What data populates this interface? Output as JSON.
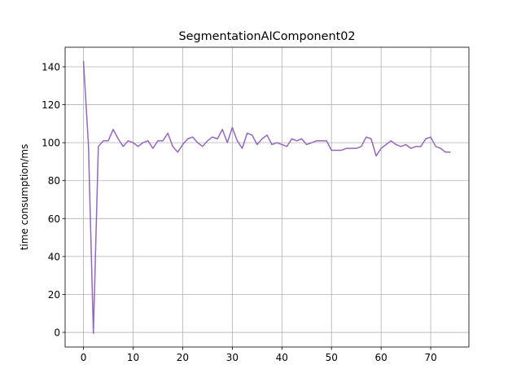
{
  "chart_data": {
    "type": "line",
    "title": "SegmentationAIComponent02",
    "ylabel": "time consumption/ms",
    "x": [
      0,
      1,
      2,
      3,
      4,
      5,
      6,
      7,
      8,
      9,
      10,
      11,
      12,
      13,
      14,
      15,
      16,
      17,
      18,
      19,
      20,
      21,
      22,
      23,
      24,
      25,
      26,
      27,
      28,
      29,
      30,
      31,
      32,
      33,
      34,
      35,
      36,
      37,
      38,
      39,
      40,
      41,
      42,
      43,
      44,
      45,
      46,
      47,
      48,
      49,
      50,
      51,
      52,
      53,
      54,
      55,
      56,
      57,
      58,
      59,
      60,
      61,
      62,
      63,
      64,
      65,
      66,
      67,
      68,
      69,
      70,
      71,
      72,
      73,
      74
    ],
    "series": [
      {
        "name": "SegmentationAIComponent02",
        "color": "#9467bd",
        "values": [
          143,
          99,
          -0.5,
          98,
          101,
          101,
          107,
          102,
          98,
          101,
          100,
          98,
          100,
          101,
          97,
          101,
          101,
          105,
          98,
          95,
          99,
          102,
          103,
          100,
          98,
          101,
          103,
          102,
          107,
          100,
          108,
          101,
          97,
          105,
          104,
          99,
          102,
          104,
          99,
          100,
          99,
          98,
          102,
          101,
          102,
          99,
          100,
          101,
          101,
          101,
          96,
          96,
          96,
          97,
          97,
          97,
          98,
          103,
          102,
          93,
          97,
          99,
          101,
          99,
          98,
          99,
          97,
          98,
          98,
          102,
          103,
          98,
          97,
          95,
          95
        ]
      }
    ],
    "xlim": [
      -3.7,
      77.7
    ],
    "ylim": [
      -7.7,
      150.3
    ],
    "xticks": [
      0,
      10,
      20,
      30,
      40,
      50,
      60,
      70
    ],
    "yticks": [
      0,
      20,
      40,
      60,
      80,
      100,
      120,
      140
    ],
    "grid": true
  }
}
